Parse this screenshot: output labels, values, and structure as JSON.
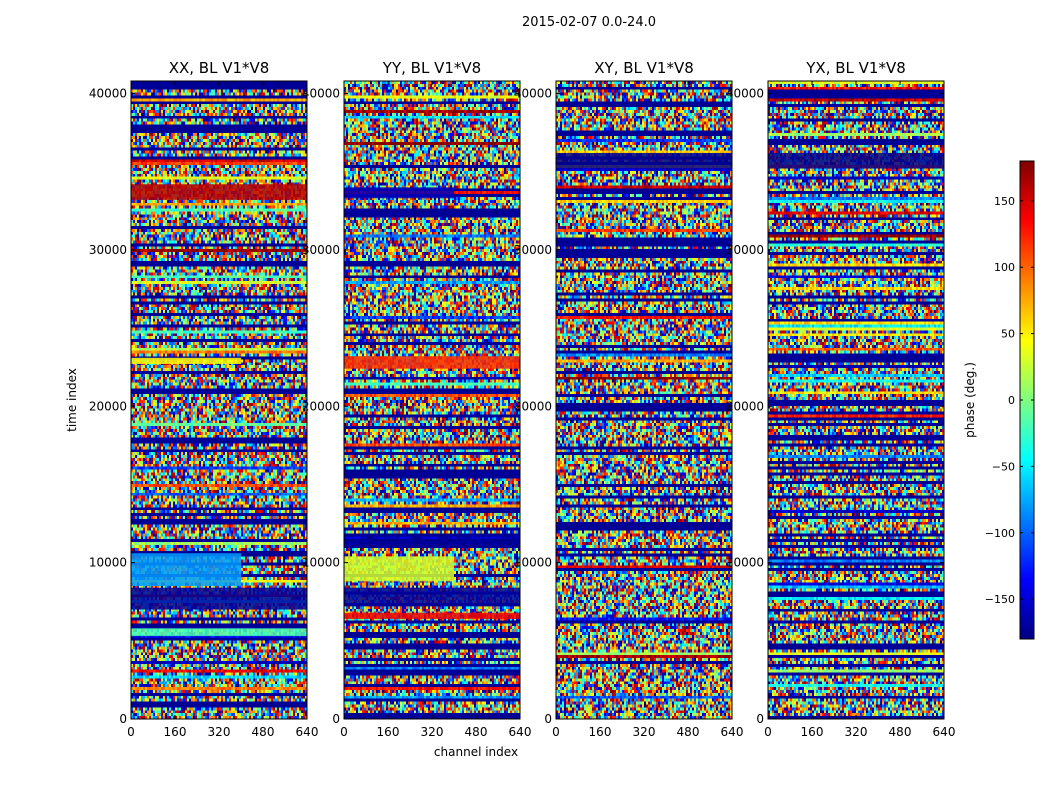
{
  "figure": {
    "title": "2015-02-07 0.0-24.0",
    "xlabel": "channel index",
    "ylabel": "time index"
  },
  "colorbar": {
    "label": "phase (deg.)",
    "range": [
      -180,
      180
    ],
    "ticks": [
      150,
      100,
      50,
      0,
      -50,
      -100,
      -150
    ],
    "tick_labels": [
      "150",
      "100",
      "50",
      "0",
      "−50",
      "−100",
      "−150"
    ],
    "colormap": [
      "#00007f",
      "#0000ff",
      "#007fff",
      "#00ffff",
      "#7fff7f",
      "#ffff00",
      "#ff7f00",
      "#ff0000",
      "#7f0000"
    ]
  },
  "chart_data": [
    {
      "type": "heatmap",
      "title": "XX, BL V1*V8",
      "xlabel": "channel index",
      "ylabel": "time index",
      "x_ticks": [
        0,
        160,
        320,
        480,
        640
      ],
      "xlim": [
        0,
        640
      ],
      "y_ticks": [
        0,
        10000,
        20000,
        30000,
        40000
      ],
      "ylim": [
        0,
        40800
      ],
      "x_tick_labels": [
        "0",
        "160",
        "320",
        "480",
        "640"
      ],
      "y_tick_labels": [
        "0",
        "10000",
        "20000",
        "30000",
        "40000"
      ],
      "value_label": "phase (deg.)",
      "value_range": [
        -180,
        180
      ],
      "features": [
        {
          "time_range": [
            33200,
            34200
          ],
          "channel_range": [
            0,
            640
          ],
          "phase": 160
        },
        {
          "time_range": [
            22700,
            23100
          ],
          "channel_range": [
            0,
            400
          ],
          "phase": 45
        },
        {
          "time_range": [
            8500,
            10600
          ],
          "channel_range": [
            0,
            400
          ],
          "phase": -80
        },
        {
          "time_range": [
            7000,
            8400
          ],
          "channel_range": [
            0,
            640
          ],
          "phase": -170
        },
        {
          "time_range": [
            5300,
            5800
          ],
          "channel_range": [
            0,
            640
          ],
          "phase": -20
        }
      ]
    },
    {
      "type": "heatmap",
      "title": "YY, BL V1*V8",
      "xlabel": "channel index",
      "ylabel": "time index",
      "x_ticks": [
        0,
        160,
        320,
        480,
        640
      ],
      "xlim": [
        0,
        640
      ],
      "y_ticks": [
        0,
        10000,
        20000,
        30000,
        40000
      ],
      "ylim": [
        0,
        40800
      ],
      "x_tick_labels": [
        "0",
        "160",
        "320",
        "480",
        "640"
      ],
      "y_tick_labels": [
        "0",
        "10000",
        "20000",
        "30000",
        "40000"
      ],
      "value_label": "phase (deg.)",
      "value_range": [
        -180,
        180
      ],
      "features": [
        {
          "time_range": [
            33300,
            34000
          ],
          "channel_range": [
            0,
            400
          ],
          "phase": -160
        },
        {
          "time_range": [
            22400,
            23200
          ],
          "channel_range": [
            0,
            640
          ],
          "phase": 120
        },
        {
          "time_range": [
            8800,
            10400
          ],
          "channel_range": [
            0,
            400
          ],
          "phase": 30
        },
        {
          "time_range": [
            7200,
            8400
          ],
          "channel_range": [
            0,
            640
          ],
          "phase": -170
        },
        {
          "time_range": [
            6400,
            6800
          ],
          "channel_range": [
            0,
            640
          ],
          "phase": 140
        }
      ]
    },
    {
      "type": "heatmap",
      "title": "XY, BL V1*V8",
      "xlabel": "channel index",
      "ylabel": "time index",
      "x_ticks": [
        0,
        160,
        320,
        480,
        640
      ],
      "xlim": [
        0,
        640
      ],
      "y_ticks": [
        0,
        10000,
        20000,
        30000,
        40000
      ],
      "ylim": [
        0,
        40800
      ],
      "x_tick_labels": [
        "0",
        "160",
        "320",
        "480",
        "640"
      ],
      "y_tick_labels": [
        "0",
        "10000",
        "20000",
        "30000",
        "40000"
      ],
      "value_label": "phase (deg.)",
      "value_range": [
        -180,
        180
      ],
      "features": [
        {
          "time_range": [
            35200,
            36200
          ],
          "channel_range": [
            0,
            640
          ],
          "phase": -175
        }
      ]
    },
    {
      "type": "heatmap",
      "title": "YX, BL V1*V8",
      "xlabel": "channel index",
      "ylabel": "time index",
      "x_ticks": [
        0,
        160,
        320,
        480,
        640
      ],
      "xlim": [
        0,
        640
      ],
      "y_ticks": [
        0,
        10000,
        20000,
        30000,
        40000
      ],
      "ylim": [
        0,
        40800
      ],
      "x_tick_labels": [
        "0",
        "160",
        "320",
        "480",
        "640"
      ],
      "y_tick_labels": [
        "0",
        "10000",
        "20000",
        "30000",
        "40000"
      ],
      "value_label": "phase (deg.)",
      "value_range": [
        -180,
        180
      ],
      "features": [
        {
          "time_range": [
            35200,
            36200
          ],
          "channel_range": [
            0,
            640
          ],
          "phase": -175
        }
      ]
    }
  ]
}
